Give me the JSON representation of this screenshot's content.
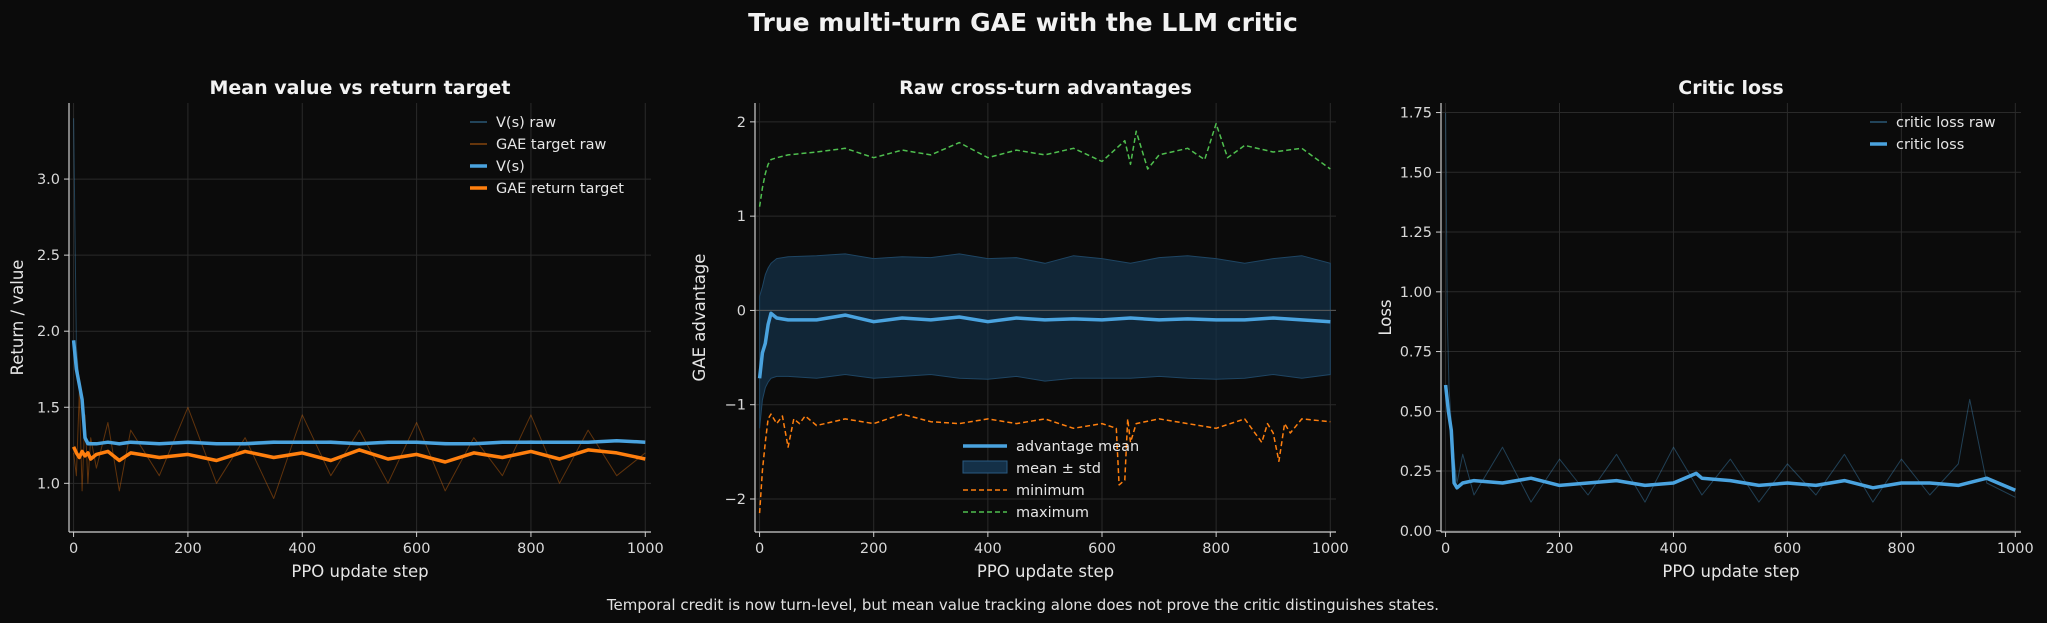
{
  "figure": {
    "title": "True multi-turn GAE with the LLM critic",
    "caption": "Temporal credit is now turn-level, but mean value tracking alone does not prove the critic distinguishes states."
  },
  "colors": {
    "background": "#0b0b0b",
    "axis": "#cfcfcf",
    "grid": "#2a2a2a",
    "blue": "#4aa3df",
    "orange": "#ff7f0e",
    "green": "#4fbf4f",
    "band": "#143047"
  },
  "chart_data": [
    {
      "type": "line",
      "title": "Mean value vs return target",
      "xlabel": "PPO update step",
      "ylabel": "Return / value",
      "xlim": [
        -8,
        1010
      ],
      "ylim": [
        0.68,
        3.5
      ],
      "xticks": [
        0,
        200,
        400,
        600,
        800,
        1000
      ],
      "yticks": [
        1.0,
        1.5,
        2.0,
        2.5,
        3.0
      ],
      "xtick_labels": [
        "0",
        "200",
        "400",
        "600",
        "800",
        "1000"
      ],
      "ytick_labels": [
        "1.0",
        "1.5",
        "2.0",
        "2.5",
        "3.0"
      ],
      "grid": true,
      "legend_position": "top-right",
      "series": [
        {
          "name": "V(s) raw",
          "style": "raw",
          "color": "#4aa3df",
          "x": [
            0,
            5,
            10,
            15,
            20,
            25,
            30,
            40,
            60,
            80,
            100,
            150,
            200,
            250,
            300,
            350,
            400,
            450,
            500,
            550,
            600,
            650,
            700,
            750,
            800,
            850,
            900,
            950,
            1000
          ],
          "y": [
            3.4,
            1.9,
            1.65,
            1.5,
            1.32,
            1.28,
            1.27,
            1.26,
            1.27,
            1.25,
            1.27,
            1.26,
            1.27,
            1.26,
            1.27,
            1.28,
            1.27,
            1.28,
            1.26,
            1.27,
            1.27,
            1.27,
            1.26,
            1.27,
            1.28,
            1.27,
            1.27,
            1.28,
            1.27
          ]
        },
        {
          "name": "GAE target raw",
          "style": "raw",
          "color": "#ff7f0e",
          "x": [
            0,
            5,
            10,
            15,
            20,
            25,
            30,
            40,
            60,
            80,
            100,
            150,
            200,
            250,
            300,
            350,
            400,
            450,
            500,
            550,
            600,
            650,
            700,
            750,
            800,
            850,
            900,
            950,
            1000
          ],
          "y": [
            1.2,
            1.05,
            1.6,
            0.95,
            1.45,
            1.0,
            1.3,
            1.1,
            1.4,
            0.95,
            1.35,
            1.05,
            1.5,
            1.0,
            1.3,
            0.9,
            1.45,
            1.05,
            1.35,
            1.0,
            1.4,
            0.95,
            1.3,
            1.05,
            1.45,
            1.0,
            1.35,
            1.05,
            1.2
          ]
        },
        {
          "name": "V(s)",
          "style": "smooth",
          "color": "#4aa3df",
          "x": [
            0,
            5,
            10,
            15,
            20,
            25,
            30,
            40,
            60,
            80,
            100,
            150,
            200,
            250,
            300,
            350,
            400,
            450,
            500,
            550,
            600,
            650,
            700,
            750,
            800,
            850,
            900,
            950,
            1000
          ],
          "y": [
            1.94,
            1.75,
            1.65,
            1.55,
            1.3,
            1.26,
            1.26,
            1.26,
            1.27,
            1.26,
            1.27,
            1.26,
            1.27,
            1.26,
            1.26,
            1.27,
            1.27,
            1.27,
            1.26,
            1.27,
            1.27,
            1.26,
            1.26,
            1.27,
            1.27,
            1.27,
            1.27,
            1.28,
            1.27
          ]
        },
        {
          "name": "GAE return target",
          "style": "smooth",
          "color": "#ff7f0e",
          "x": [
            0,
            5,
            10,
            15,
            20,
            25,
            30,
            40,
            60,
            80,
            100,
            150,
            200,
            250,
            300,
            350,
            400,
            450,
            500,
            550,
            600,
            650,
            700,
            750,
            800,
            850,
            900,
            950,
            1000
          ],
          "y": [
            1.24,
            1.2,
            1.17,
            1.21,
            1.18,
            1.2,
            1.16,
            1.19,
            1.21,
            1.15,
            1.2,
            1.17,
            1.19,
            1.15,
            1.21,
            1.17,
            1.2,
            1.15,
            1.22,
            1.16,
            1.19,
            1.14,
            1.2,
            1.17,
            1.21,
            1.16,
            1.22,
            1.2,
            1.16
          ]
        }
      ]
    },
    {
      "type": "line",
      "title": "Raw cross-turn advantages",
      "xlabel": "PPO update step",
      "ylabel": "GAE advantage",
      "xlim": [
        -8,
        1010
      ],
      "ylim": [
        -2.35,
        2.2
      ],
      "xticks": [
        0,
        200,
        400,
        600,
        800,
        1000
      ],
      "yticks": [
        -2,
        -1,
        0,
        1,
        2
      ],
      "xtick_labels": [
        "0",
        "200",
        "400",
        "600",
        "800",
        "1000"
      ],
      "ytick_labels": [
        "−2",
        "−1",
        "0",
        "1",
        "2"
      ],
      "zero_line": true,
      "grid": true,
      "legend_position": "lower-center",
      "band": {
        "name": "mean ± std",
        "x": [
          0,
          5,
          10,
          15,
          20,
          30,
          50,
          100,
          150,
          200,
          250,
          300,
          350,
          400,
          450,
          500,
          550,
          600,
          650,
          700,
          750,
          800,
          850,
          900,
          950,
          1000
        ],
        "upper": [
          0.15,
          0.25,
          0.38,
          0.45,
          0.5,
          0.55,
          0.57,
          0.58,
          0.6,
          0.55,
          0.57,
          0.56,
          0.6,
          0.55,
          0.56,
          0.5,
          0.58,
          0.55,
          0.5,
          0.56,
          0.58,
          0.55,
          0.5,
          0.55,
          0.58,
          0.5
        ],
        "lower": [
          -1.25,
          -0.95,
          -0.82,
          -0.76,
          -0.72,
          -0.7,
          -0.7,
          -0.72,
          -0.68,
          -0.72,
          -0.7,
          -0.68,
          -0.72,
          -0.73,
          -0.7,
          -0.75,
          -0.72,
          -0.72,
          -0.72,
          -0.7,
          -0.72,
          -0.73,
          -0.72,
          -0.68,
          -0.72,
          -0.68
        ]
      },
      "series": [
        {
          "name": "advantage mean",
          "style": "smooth",
          "color": "#4aa3df",
          "x": [
            0,
            5,
            10,
            15,
            20,
            30,
            50,
            100,
            150,
            200,
            250,
            300,
            350,
            400,
            450,
            500,
            550,
            600,
            650,
            700,
            750,
            800,
            850,
            900,
            950,
            1000
          ],
          "y": [
            -0.72,
            -0.45,
            -0.35,
            -0.15,
            -0.03,
            -0.08,
            -0.1,
            -0.1,
            -0.05,
            -0.12,
            -0.08,
            -0.1,
            -0.07,
            -0.12,
            -0.08,
            -0.1,
            -0.09,
            -0.1,
            -0.08,
            -0.1,
            -0.09,
            -0.1,
            -0.1,
            -0.08,
            -0.1,
            -0.12
          ]
        },
        {
          "name": "minimum",
          "style": "dashed",
          "color": "#ff7f0e",
          "x": [
            0,
            5,
            10,
            15,
            20,
            30,
            40,
            50,
            60,
            70,
            80,
            100,
            150,
            200,
            250,
            300,
            350,
            400,
            450,
            500,
            550,
            600,
            625,
            630,
            640,
            645,
            650,
            660,
            700,
            750,
            800,
            850,
            880,
            890,
            900,
            910,
            920,
            930,
            950,
            1000
          ],
          "y": [
            -2.15,
            -1.7,
            -1.4,
            -1.15,
            -1.1,
            -1.2,
            -1.12,
            -1.45,
            -1.15,
            -1.2,
            -1.12,
            -1.22,
            -1.15,
            -1.2,
            -1.1,
            -1.18,
            -1.2,
            -1.15,
            -1.2,
            -1.15,
            -1.25,
            -1.2,
            -1.25,
            -1.85,
            -1.8,
            -1.15,
            -1.4,
            -1.2,
            -1.15,
            -1.2,
            -1.25,
            -1.15,
            -1.4,
            -1.2,
            -1.3,
            -1.6,
            -1.2,
            -1.3,
            -1.15,
            -1.18
          ]
        },
        {
          "name": "maximum",
          "style": "dashed",
          "color": "#4fbf4f",
          "x": [
            0,
            5,
            10,
            15,
            20,
            30,
            50,
            100,
            150,
            200,
            250,
            300,
            350,
            400,
            450,
            500,
            550,
            600,
            640,
            650,
            660,
            680,
            700,
            750,
            780,
            800,
            820,
            850,
            900,
            950,
            1000
          ],
          "y": [
            1.1,
            1.3,
            1.45,
            1.55,
            1.6,
            1.62,
            1.65,
            1.68,
            1.72,
            1.62,
            1.7,
            1.65,
            1.78,
            1.62,
            1.7,
            1.65,
            1.72,
            1.58,
            1.8,
            1.55,
            1.9,
            1.5,
            1.65,
            1.72,
            1.6,
            1.98,
            1.62,
            1.75,
            1.68,
            1.72,
            1.5
          ]
        }
      ]
    },
    {
      "type": "line",
      "title": "Critic loss",
      "xlabel": "PPO update step",
      "ylabel": "Loss",
      "xlim": [
        -8,
        1010
      ],
      "ylim": [
        -0.005,
        1.79
      ],
      "xticks": [
        0,
        200,
        400,
        600,
        800,
        1000
      ],
      "yticks": [
        0.0,
        0.25,
        0.5,
        0.75,
        1.0,
        1.25,
        1.5,
        1.75
      ],
      "xtick_labels": [
        "0",
        "200",
        "400",
        "600",
        "800",
        "1000"
      ],
      "ytick_labels": [
        "0.00",
        "0.25",
        "0.50",
        "0.75",
        "1.00",
        "1.25",
        "1.50",
        "1.75"
      ],
      "grid": true,
      "legend_position": "top-right",
      "series": [
        {
          "name": "critic loss raw",
          "style": "raw",
          "color": "#4aa3df",
          "x": [
            0,
            3,
            6,
            10,
            15,
            20,
            30,
            50,
            100,
            150,
            200,
            250,
            300,
            350,
            400,
            450,
            500,
            550,
            600,
            650,
            700,
            750,
            800,
            850,
            900,
            920,
            950,
            1000
          ],
          "y": [
            1.75,
            0.9,
            0.6,
            0.45,
            0.3,
            0.2,
            0.32,
            0.15,
            0.35,
            0.12,
            0.3,
            0.15,
            0.32,
            0.12,
            0.35,
            0.15,
            0.3,
            0.12,
            0.28,
            0.15,
            0.32,
            0.12,
            0.3,
            0.15,
            0.28,
            0.55,
            0.2,
            0.14
          ]
        },
        {
          "name": "critic loss",
          "style": "smooth",
          "color": "#4aa3df",
          "x": [
            0,
            5,
            10,
            15,
            20,
            30,
            50,
            100,
            150,
            200,
            250,
            300,
            350,
            400,
            440,
            450,
            500,
            550,
            600,
            650,
            700,
            750,
            800,
            850,
            900,
            950,
            1000
          ],
          "y": [
            0.61,
            0.5,
            0.42,
            0.2,
            0.18,
            0.2,
            0.21,
            0.2,
            0.22,
            0.19,
            0.2,
            0.21,
            0.19,
            0.2,
            0.24,
            0.22,
            0.21,
            0.19,
            0.2,
            0.19,
            0.21,
            0.18,
            0.2,
            0.2,
            0.19,
            0.22,
            0.17
          ]
        }
      ]
    }
  ]
}
